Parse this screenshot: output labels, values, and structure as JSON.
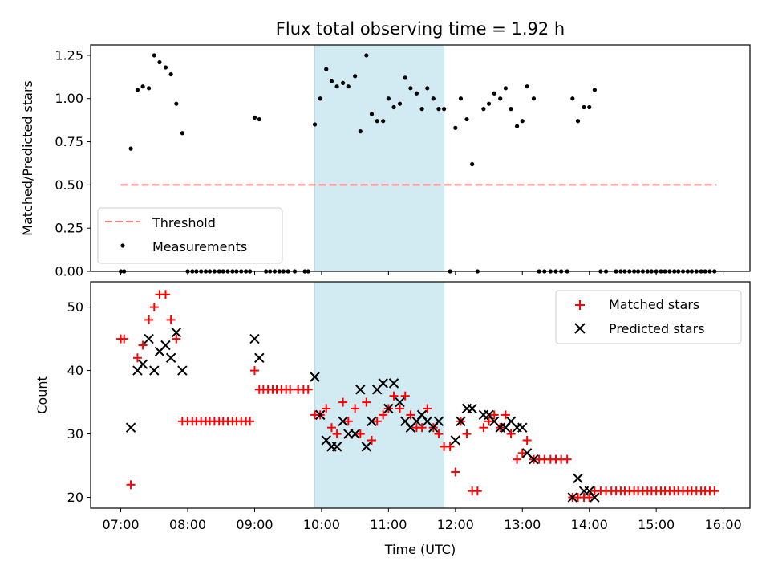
{
  "colors": {
    "highlight": "#add8e6",
    "threshold": "#ff7f7f",
    "measurement": "#000000",
    "matched": "#ff0000",
    "predicted": "#000000"
  },
  "chart_data": [
    {
      "type": "scatter",
      "title": "Flux total observing time = 1.92 h",
      "xlabel": "",
      "ylabel": "Matched/Predicted stars",
      "xlim": [
        6.55,
        16.4
      ],
      "ylim": [
        0.0,
        1.31
      ],
      "yticks": [
        0.0,
        0.25,
        0.5,
        0.75,
        1.0,
        1.25
      ],
      "ytick_labels": [
        "0.00",
        "0.25",
        "0.50",
        "0.75",
        "1.00",
        "1.25"
      ],
      "highlight_span": [
        9.9,
        11.83
      ],
      "threshold": {
        "label": "Threshold",
        "value": 0.5,
        "x_range": [
          7.0,
          15.9
        ]
      },
      "measurements_label": "Measurements",
      "legend_position": "lower-left",
      "measurements": [
        [
          7.0,
          0.0
        ],
        [
          7.05,
          0.0
        ],
        [
          7.15,
          0.71
        ],
        [
          7.25,
          1.05
        ],
        [
          7.33,
          1.07
        ],
        [
          7.42,
          1.06
        ],
        [
          7.5,
          1.25
        ],
        [
          7.58,
          1.21
        ],
        [
          7.67,
          1.18
        ],
        [
          7.75,
          1.14
        ],
        [
          7.83,
          0.97
        ],
        [
          7.92,
          0.8
        ],
        [
          8.0,
          0.0
        ],
        [
          8.07,
          0.0
        ],
        [
          8.13,
          0.0
        ],
        [
          8.2,
          0.0
        ],
        [
          8.27,
          0.0
        ],
        [
          8.33,
          0.0
        ],
        [
          8.4,
          0.0
        ],
        [
          8.47,
          0.0
        ],
        [
          8.53,
          0.0
        ],
        [
          8.6,
          0.0
        ],
        [
          8.67,
          0.0
        ],
        [
          8.73,
          0.0
        ],
        [
          8.8,
          0.0
        ],
        [
          8.87,
          0.0
        ],
        [
          8.93,
          0.0
        ],
        [
          9.0,
          0.89
        ],
        [
          9.07,
          0.88
        ],
        [
          9.17,
          0.0
        ],
        [
          9.23,
          0.0
        ],
        [
          9.3,
          0.0
        ],
        [
          9.37,
          0.0
        ],
        [
          9.43,
          0.0
        ],
        [
          9.5,
          0.0
        ],
        [
          9.6,
          0.0
        ],
        [
          9.75,
          0.0
        ],
        [
          9.8,
          0.0
        ],
        [
          9.9,
          0.85
        ],
        [
          9.98,
          1.0
        ],
        [
          10.07,
          1.17
        ],
        [
          10.15,
          1.1
        ],
        [
          10.23,
          1.07
        ],
        [
          10.32,
          1.09
        ],
        [
          10.4,
          1.07
        ],
        [
          10.5,
          1.13
        ],
        [
          10.58,
          0.81
        ],
        [
          10.67,
          1.25
        ],
        [
          10.75,
          0.91
        ],
        [
          10.83,
          0.87
        ],
        [
          10.92,
          0.87
        ],
        [
          11.0,
          1.0
        ],
        [
          11.08,
          0.95
        ],
        [
          11.17,
          0.97
        ],
        [
          11.25,
          1.12
        ],
        [
          11.33,
          1.06
        ],
        [
          11.42,
          1.03
        ],
        [
          11.5,
          0.94
        ],
        [
          11.58,
          1.06
        ],
        [
          11.67,
          1.0
        ],
        [
          11.75,
          0.94
        ],
        [
          11.83,
          0.94
        ],
        [
          11.92,
          0.0
        ],
        [
          12.0,
          0.83
        ],
        [
          12.08,
          1.0
        ],
        [
          12.17,
          0.88
        ],
        [
          12.25,
          0.62
        ],
        [
          12.33,
          0.0
        ],
        [
          12.42,
          0.94
        ],
        [
          12.5,
          0.97
        ],
        [
          12.58,
          1.03
        ],
        [
          12.67,
          1.0
        ],
        [
          12.75,
          1.06
        ],
        [
          12.83,
          0.94
        ],
        [
          12.92,
          0.84
        ],
        [
          13.0,
          0.87
        ],
        [
          13.07,
          1.07
        ],
        [
          13.17,
          1.0
        ],
        [
          13.25,
          0.0
        ],
        [
          13.33,
          0.0
        ],
        [
          13.42,
          0.0
        ],
        [
          13.5,
          0.0
        ],
        [
          13.58,
          0.0
        ],
        [
          13.67,
          0.0
        ],
        [
          13.75,
          1.0
        ],
        [
          13.83,
          0.87
        ],
        [
          13.92,
          0.95
        ],
        [
          14.0,
          0.95
        ],
        [
          14.08,
          1.05
        ],
        [
          14.17,
          0.0
        ],
        [
          14.25,
          0.0
        ],
        [
          14.4,
          0.0
        ],
        [
          14.47,
          0.0
        ],
        [
          14.53,
          0.0
        ],
        [
          14.6,
          0.0
        ],
        [
          14.67,
          0.0
        ],
        [
          14.73,
          0.0
        ],
        [
          14.8,
          0.0
        ],
        [
          14.87,
          0.0
        ],
        [
          14.93,
          0.0
        ],
        [
          15.0,
          0.0
        ],
        [
          15.07,
          0.0
        ],
        [
          15.13,
          0.0
        ],
        [
          15.2,
          0.0
        ],
        [
          15.27,
          0.0
        ],
        [
          15.33,
          0.0
        ],
        [
          15.4,
          0.0
        ],
        [
          15.47,
          0.0
        ],
        [
          15.53,
          0.0
        ],
        [
          15.6,
          0.0
        ],
        [
          15.67,
          0.0
        ],
        [
          15.73,
          0.0
        ],
        [
          15.8,
          0.0
        ],
        [
          15.87,
          0.0
        ]
      ]
    },
    {
      "type": "scatter",
      "title": "",
      "xlabel": "Time (UTC)",
      "ylabel": "Count",
      "xlim": [
        6.55,
        16.4
      ],
      "ylim": [
        18.3,
        54.0
      ],
      "yticks": [
        20,
        30,
        40,
        50
      ],
      "ytick_labels": [
        "20",
        "30",
        "40",
        "50"
      ],
      "xticks": [
        7,
        8,
        9,
        10,
        11,
        12,
        13,
        14,
        15,
        16
      ],
      "xtick_labels": [
        "07:00",
        "08:00",
        "09:00",
        "10:00",
        "11:00",
        "12:00",
        "13:00",
        "14:00",
        "15:00",
        "16:00"
      ],
      "highlight_span": [
        9.9,
        11.83
      ],
      "legend_position": "upper-right",
      "series": [
        {
          "name": "Matched stars",
          "marker": "plus",
          "points": [
            [
              7.0,
              45
            ],
            [
              7.05,
              45
            ],
            [
              7.15,
              22
            ],
            [
              7.25,
              42
            ],
            [
              7.33,
              44
            ],
            [
              7.42,
              48
            ],
            [
              7.5,
              50
            ],
            [
              7.58,
              52
            ],
            [
              7.67,
              52
            ],
            [
              7.75,
              48
            ],
            [
              7.83,
              45
            ],
            [
              7.92,
              32
            ],
            [
              8.0,
              32
            ],
            [
              8.07,
              32
            ],
            [
              8.13,
              32
            ],
            [
              8.2,
              32
            ],
            [
              8.27,
              32
            ],
            [
              8.33,
              32
            ],
            [
              8.4,
              32
            ],
            [
              8.47,
              32
            ],
            [
              8.53,
              32
            ],
            [
              8.6,
              32
            ],
            [
              8.67,
              32
            ],
            [
              8.73,
              32
            ],
            [
              8.8,
              32
            ],
            [
              8.87,
              32
            ],
            [
              8.93,
              32
            ],
            [
              9.0,
              40
            ],
            [
              9.07,
              37
            ],
            [
              9.13,
              37
            ],
            [
              9.2,
              37
            ],
            [
              9.27,
              37
            ],
            [
              9.33,
              37
            ],
            [
              9.4,
              37
            ],
            [
              9.47,
              37
            ],
            [
              9.53,
              37
            ],
            [
              9.65,
              37
            ],
            [
              9.73,
              37
            ],
            [
              9.8,
              37
            ],
            [
              9.9,
              33
            ],
            [
              9.98,
              33
            ],
            [
              10.07,
              34
            ],
            [
              10.15,
              31
            ],
            [
              10.23,
              30
            ],
            [
              10.32,
              35
            ],
            [
              10.4,
              32
            ],
            [
              10.5,
              34
            ],
            [
              10.58,
              30
            ],
            [
              10.67,
              35
            ],
            [
              10.75,
              29
            ],
            [
              10.83,
              32
            ],
            [
              10.92,
              33
            ],
            [
              11.0,
              34
            ],
            [
              11.08,
              36
            ],
            [
              11.17,
              34
            ],
            [
              11.25,
              36
            ],
            [
              11.33,
              33
            ],
            [
              11.42,
              31
            ],
            [
              11.5,
              31
            ],
            [
              11.58,
              34
            ],
            [
              11.67,
              31
            ],
            [
              11.75,
              30
            ],
            [
              11.83,
              28
            ],
            [
              11.92,
              28
            ],
            [
              12.0,
              24
            ],
            [
              12.08,
              32
            ],
            [
              12.17,
              30
            ],
            [
              12.25,
              21
            ],
            [
              12.33,
              21
            ],
            [
              12.42,
              31
            ],
            [
              12.5,
              32
            ],
            [
              12.58,
              33
            ],
            [
              12.67,
              31
            ],
            [
              12.75,
              33
            ],
            [
              12.83,
              30
            ],
            [
              12.92,
              26
            ],
            [
              13.0,
              27
            ],
            [
              13.07,
              29
            ],
            [
              13.17,
              26
            ],
            [
              13.25,
              26
            ],
            [
              13.33,
              26
            ],
            [
              13.42,
              26
            ],
            [
              13.5,
              26
            ],
            [
              13.58,
              26
            ],
            [
              13.67,
              26
            ],
            [
              13.75,
              20
            ],
            [
              13.83,
              20
            ],
            [
              13.92,
              20
            ],
            [
              14.0,
              20
            ],
            [
              14.08,
              21
            ],
            [
              14.17,
              21
            ],
            [
              14.25,
              21
            ],
            [
              14.33,
              21
            ],
            [
              14.4,
              21
            ],
            [
              14.47,
              21
            ],
            [
              14.53,
              21
            ],
            [
              14.6,
              21
            ],
            [
              14.67,
              21
            ],
            [
              14.73,
              21
            ],
            [
              14.8,
              21
            ],
            [
              14.87,
              21
            ],
            [
              14.93,
              21
            ],
            [
              15.0,
              21
            ],
            [
              15.07,
              21
            ],
            [
              15.13,
              21
            ],
            [
              15.2,
              21
            ],
            [
              15.27,
              21
            ],
            [
              15.33,
              21
            ],
            [
              15.4,
              21
            ],
            [
              15.47,
              21
            ],
            [
              15.53,
              21
            ],
            [
              15.6,
              21
            ],
            [
              15.67,
              21
            ],
            [
              15.73,
              21
            ],
            [
              15.8,
              21
            ],
            [
              15.87,
              21
            ]
          ]
        },
        {
          "name": "Predicted stars",
          "marker": "x",
          "points": [
            [
              7.15,
              31
            ],
            [
              7.25,
              40
            ],
            [
              7.33,
              41
            ],
            [
              7.42,
              45
            ],
            [
              7.5,
              40
            ],
            [
              7.58,
              43
            ],
            [
              7.67,
              44
            ],
            [
              7.75,
              42
            ],
            [
              7.83,
              46
            ],
            [
              7.92,
              40
            ],
            [
              9.0,
              45
            ],
            [
              9.07,
              42
            ],
            [
              9.9,
              39
            ],
            [
              9.98,
              33
            ],
            [
              10.07,
              29
            ],
            [
              10.15,
              28
            ],
            [
              10.23,
              28
            ],
            [
              10.32,
              32
            ],
            [
              10.4,
              30
            ],
            [
              10.5,
              30
            ],
            [
              10.58,
              37
            ],
            [
              10.67,
              28
            ],
            [
              10.75,
              32
            ],
            [
              10.83,
              37
            ],
            [
              10.92,
              38
            ],
            [
              11.0,
              34
            ],
            [
              11.08,
              38
            ],
            [
              11.17,
              35
            ],
            [
              11.25,
              32
            ],
            [
              11.33,
              31
            ],
            [
              11.42,
              32
            ],
            [
              11.5,
              33
            ],
            [
              11.58,
              32
            ],
            [
              11.67,
              31
            ],
            [
              11.75,
              32
            ],
            [
              12.0,
              29
            ],
            [
              12.08,
              32
            ],
            [
              12.17,
              34
            ],
            [
              12.25,
              34
            ],
            [
              12.42,
              33
            ],
            [
              12.5,
              33
            ],
            [
              12.58,
              32
            ],
            [
              12.67,
              31
            ],
            [
              12.75,
              31
            ],
            [
              12.83,
              32
            ],
            [
              12.92,
              31
            ],
            [
              13.0,
              31
            ],
            [
              13.07,
              27
            ],
            [
              13.17,
              26
            ],
            [
              13.75,
              20
            ],
            [
              13.83,
              23
            ],
            [
              13.92,
              21
            ],
            [
              14.0,
              21
            ],
            [
              14.08,
              20
            ]
          ]
        }
      ]
    }
  ]
}
